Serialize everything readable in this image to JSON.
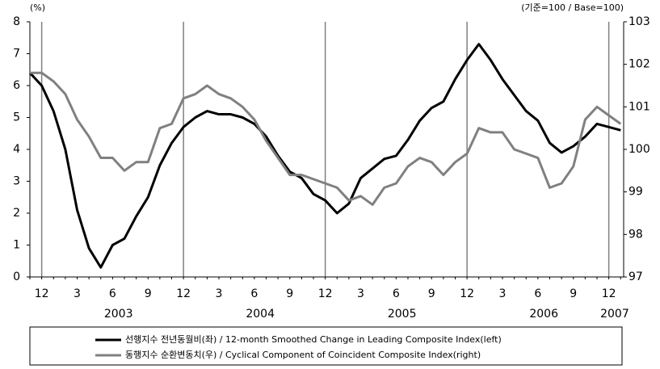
{
  "chart_data": {
    "type": "line",
    "y_unit_label": "(%)",
    "y2_unit_label": "(기준=100 / Base=100)",
    "categories": [
      null,
      "12",
      null,
      null,
      "3",
      null,
      null,
      "6",
      null,
      null,
      "9",
      null,
      null,
      "12",
      null,
      null,
      "3",
      null,
      null,
      "6",
      null,
      null,
      "9",
      null,
      null,
      "12",
      null,
      null,
      "3",
      null,
      null,
      "6",
      null,
      null,
      "9",
      null,
      null,
      "12",
      null,
      null,
      "3",
      null,
      null,
      "6",
      null,
      null,
      "9",
      null,
      null,
      "12",
      null
    ],
    "years": [
      "2003",
      "2004",
      "2005",
      "2006",
      "2007"
    ],
    "series": [
      {
        "name": "선행지수 전년동월비(좌) / 12-month Smoothed Change in Leading Composite Index(left)",
        "color": "#000000",
        "axis": "y",
        "values": [
          6.4,
          6.0,
          5.2,
          4.0,
          2.1,
          0.9,
          0.3,
          1.0,
          1.2,
          1.9,
          2.5,
          3.5,
          4.2,
          4.7,
          5.0,
          5.2,
          5.1,
          5.1,
          5.0,
          4.8,
          4.4,
          3.8,
          3.3,
          3.1,
          2.6,
          2.4,
          2.0,
          2.3,
          3.1,
          3.4,
          3.7,
          3.8,
          4.3,
          4.9,
          5.3,
          5.5,
          6.2,
          6.8,
          7.3,
          6.8,
          6.2,
          5.7,
          5.2,
          4.9,
          4.2,
          3.9,
          4.1,
          4.4,
          4.8,
          4.7,
          4.6
        ]
      },
      {
        "name": "동행지수 순환변동치(우) / Cyclical Component of Coincident Composite Index(right)",
        "color": "#808080",
        "axis": "y2",
        "values": [
          101.8,
          101.8,
          101.6,
          101.3,
          100.7,
          100.3,
          99.8,
          99.8,
          99.5,
          99.7,
          99.7,
          100.5,
          100.6,
          101.2,
          101.3,
          101.5,
          101.3,
          101.2,
          101.0,
          100.7,
          100.2,
          99.8,
          99.4,
          99.4,
          99.3,
          99.2,
          99.1,
          98.8,
          98.9,
          98.7,
          99.1,
          99.2,
          99.6,
          99.8,
          99.7,
          99.4,
          99.7,
          99.9,
          100.5,
          100.4,
          100.4,
          100.0,
          99.9,
          99.8,
          99.1,
          99.2,
          99.6,
          100.7,
          101.0,
          100.8,
          100.6
        ]
      }
    ],
    "ylim": [
      0,
      8
    ],
    "yticks": [
      0,
      1,
      2,
      3,
      4,
      5,
      6,
      7,
      8
    ],
    "y2lim": [
      97,
      103
    ],
    "y2ticks": [
      97,
      98,
      99,
      100,
      101,
      102,
      103
    ],
    "legend": "bottom"
  }
}
